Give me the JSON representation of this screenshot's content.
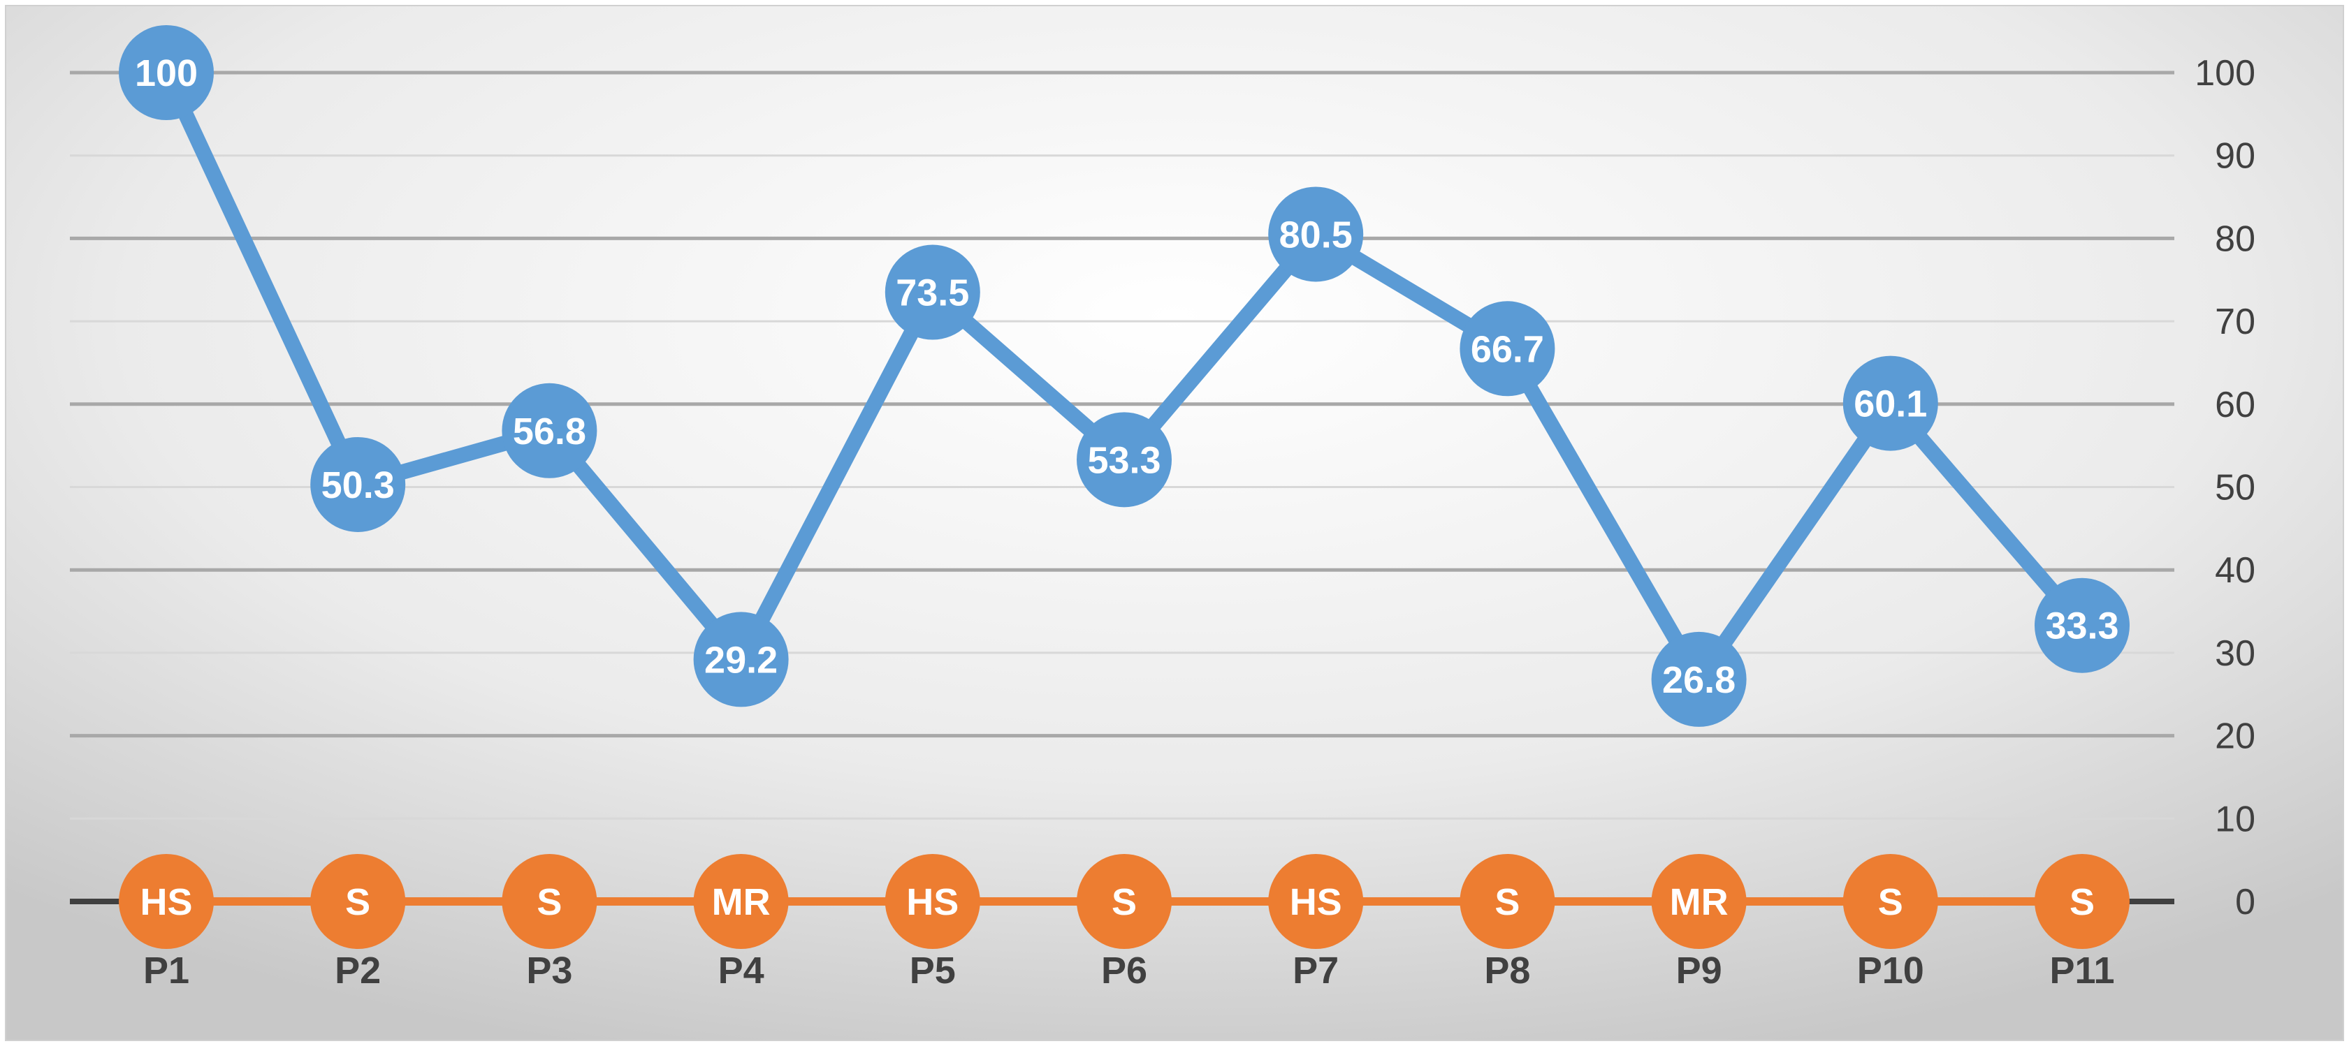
{
  "chart_data": {
    "type": "line",
    "categories": [
      "P1",
      "P2",
      "P3",
      "P4",
      "P5",
      "P6",
      "P7",
      "P8",
      "P9",
      "P10",
      "P11"
    ],
    "series": [
      {
        "values": [
          100,
          50.3,
          56.8,
          29.2,
          73.5,
          53.3,
          80.5,
          66.7,
          26.8,
          60.1,
          33.3
        ],
        "labels": [
          "100",
          "50.3",
          "56.8",
          "29.2",
          "73.5",
          "53.3",
          "80.5",
          "66.7",
          "26.8",
          "60.1",
          "33.3"
        ],
        "color": "#5B9BD5"
      },
      {
        "values": [
          0,
          0,
          0,
          0,
          0,
          0,
          0,
          0,
          0,
          0,
          0
        ],
        "labels": [
          "HS",
          "S",
          "S",
          "MR",
          "HS",
          "S",
          "HS",
          "S",
          "MR",
          "S",
          "S"
        ],
        "color": "#ED7D31"
      }
    ],
    "y_ticks": [
      "0",
      "10",
      "20",
      "30",
      "40",
      "50",
      "60",
      "70",
      "80",
      "90",
      "100"
    ],
    "ylim": [
      0,
      100
    ],
    "y_axis_side": "right",
    "grid": true,
    "gridline_color": "#BFBFBF",
    "axis_color": "#404040",
    "background": "radial-gradient-light-gray",
    "legend": "none"
  }
}
